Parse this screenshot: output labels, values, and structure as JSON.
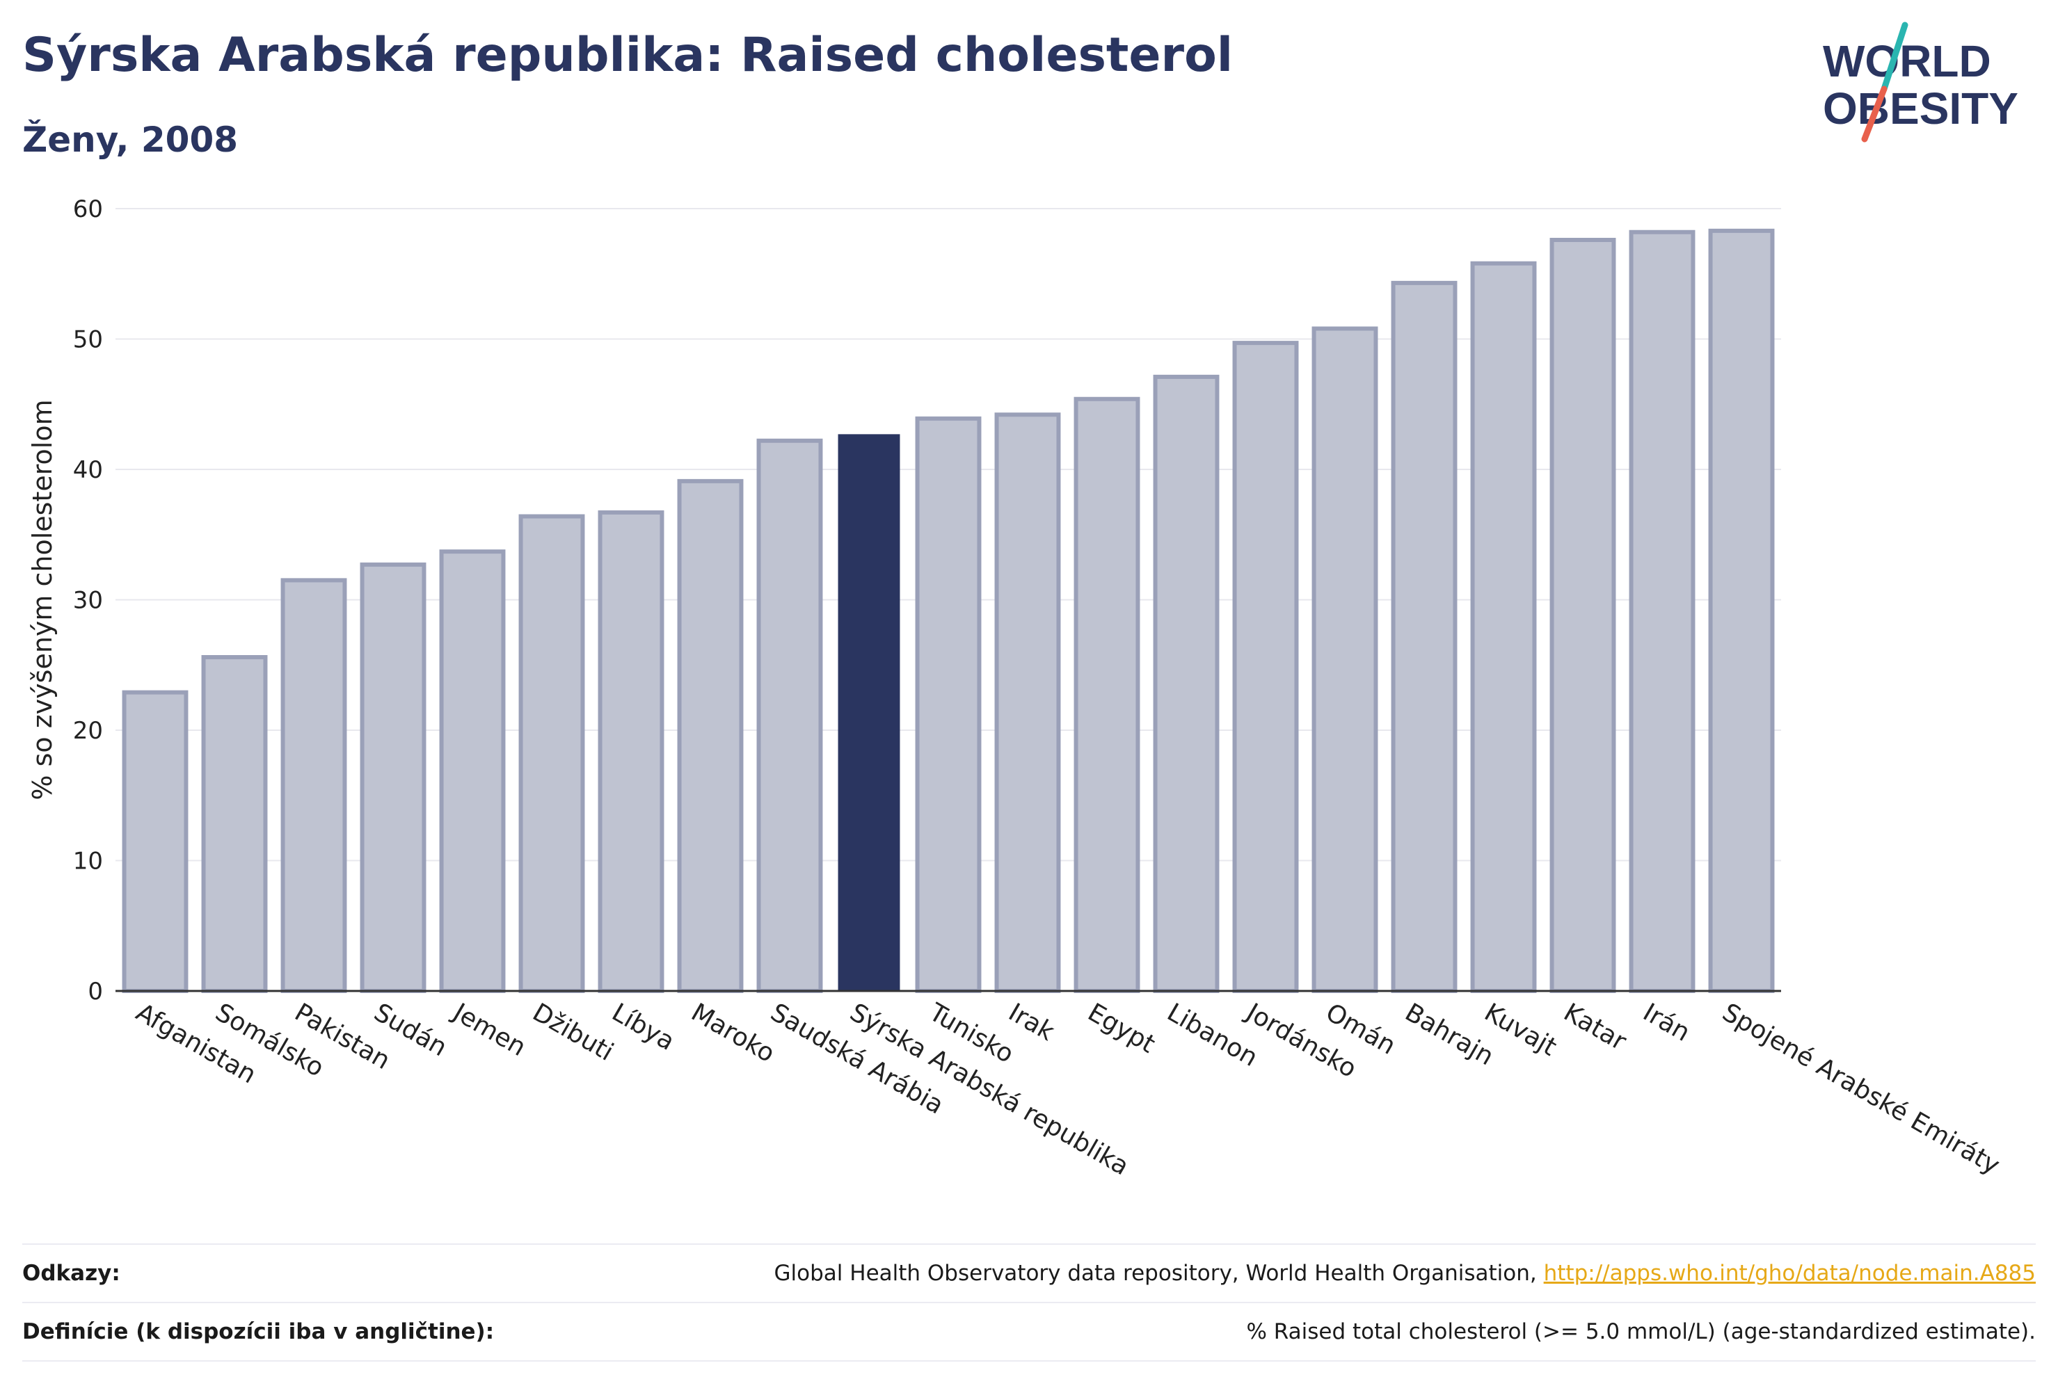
{
  "header": {
    "title": "Sýrska Arabská republika: Raised cholesterol",
    "subtitle": "Ženy, 2008"
  },
  "logo": {
    "line1": "WORLD",
    "line2": "OBESITY",
    "icon": "world-obesity-logo",
    "colors": {
      "text": "#2a3560",
      "slash_teal": "#2ab5b0",
      "slash_coral": "#e8604c"
    }
  },
  "chart_data": {
    "type": "bar",
    "ylabel": "% so zvýšeným cholesterolom",
    "ylim": [
      0,
      60
    ],
    "yticks": [
      0,
      10,
      20,
      30,
      40,
      50,
      60
    ],
    "grid": true,
    "highlight": "Sýrska Arabská republika",
    "colors": {
      "bar": "#bfc3d1",
      "bar_border": "#9aa0b8",
      "highlight": "#2a3560",
      "grid": "#e8e8ee",
      "axis": "#333333"
    },
    "categories": [
      "Afganistan",
      "Somálsko",
      "Pakistan",
      "Sudán",
      "Jemen",
      "Džibuti",
      "Líbya",
      "Maroko",
      "Saudská Arábia",
      "Sýrska Arabská republika",
      "Tunisko",
      "Irak",
      "Egypt",
      "Libanon",
      "Jordánsko",
      "Omán",
      "Bahrajn",
      "Kuvajt",
      "Katar",
      "Irán",
      "Spojené Arabské Emiráty"
    ],
    "values": [
      22.9,
      25.6,
      31.5,
      32.7,
      33.7,
      36.4,
      36.7,
      39.1,
      42.2,
      42.7,
      43.9,
      44.2,
      45.4,
      47.1,
      49.7,
      50.8,
      54.3,
      55.8,
      57.6,
      58.2,
      58.3
    ]
  },
  "footer": {
    "sources_label": "Odkazy:",
    "sources_text": "Global Health Observatory data repository, World Health Organisation, ",
    "sources_link": "http://apps.who.int/gho/data/node.main.A885",
    "definitions_label": "Definície (k dispozícii iba v angličtine):",
    "definitions_text": "% Raised total cholesterol (>= 5.0 mmol/L) (age-standardized estimate)."
  }
}
